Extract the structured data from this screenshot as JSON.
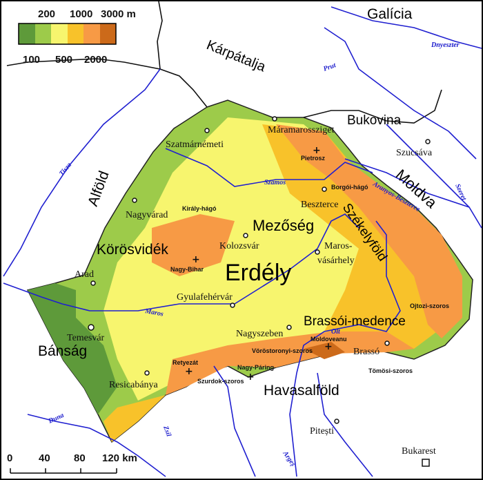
{
  "legend": {
    "top_ticks": [
      "200",
      "1000",
      "3000 m"
    ],
    "bottom_ticks": [
      "100",
      "500",
      "2000"
    ],
    "colors": [
      "#5e9a3a",
      "#9dcb4a",
      "#f7f56e",
      "#f8c22a",
      "#f79a45",
      "#cc6a1a"
    ]
  },
  "scale": {
    "ticks": [
      "0",
      "40",
      "80",
      "120 km"
    ]
  },
  "regions": [
    "Galícia",
    "Kárpátalja",
    "Bukovina",
    "Moldva",
    "Alföld",
    "Körösvidék",
    "Mezőség",
    "Erdély",
    "Székelyföld",
    "Brassói-medence",
    "Bánság",
    "Havasalföld"
  ],
  "cities": [
    "Máramarossziget",
    "Szatmárnémeti",
    "Szucsáva",
    "Beszterce",
    "Nagyvárad",
    "Kolozsvár",
    "Maros-",
    "vásárhely",
    "Arad",
    "Gyulafehérvár",
    "Temesvár",
    "Nagyszeben",
    "Brassó",
    "Resicabánya",
    "Pitești",
    "Bukarest"
  ],
  "peaks_passes": [
    "Pietrosz",
    "Borgói-hágó",
    "Király-hágó",
    "Nagy-Bihar",
    "Ojtozi-szoros",
    "Moldoveanu",
    "Vöröstoronyi-szoros",
    "Retyezát",
    "Nagy-Páring",
    "Szurdok-szoros",
    "Tömösi-szoros"
  ],
  "rivers": [
    "Dnyeszter",
    "Prut",
    "Tisza",
    "Szamos",
    "Aranyos-Beszterce",
    "Szeret",
    "Maros",
    "Olt",
    "Duna",
    "Zsil",
    "Argeș"
  ]
}
